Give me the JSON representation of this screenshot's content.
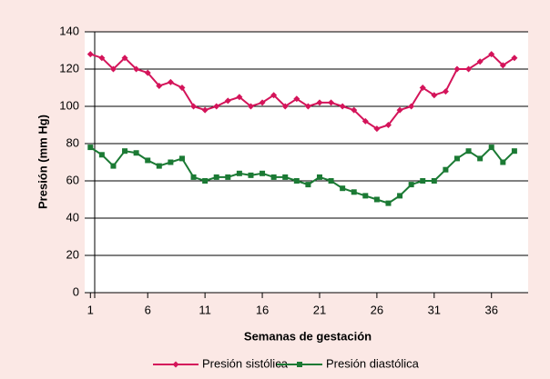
{
  "chart_data": {
    "type": "line",
    "xlabel": "Semanas de gestación",
    "ylabel": "Presión (mm Hg)",
    "x": [
      1,
      2,
      3,
      4,
      5,
      6,
      7,
      8,
      9,
      10,
      11,
      12,
      13,
      14,
      15,
      16,
      17,
      18,
      19,
      20,
      21,
      22,
      23,
      24,
      25,
      26,
      27,
      28,
      29,
      30,
      31,
      32,
      33,
      34,
      35,
      36,
      37,
      38
    ],
    "series": [
      {
        "name": "Presión sistólica",
        "color": "#d4145a",
        "marker": "diamond",
        "values": [
          128,
          126,
          120,
          126,
          120,
          118,
          111,
          113,
          110,
          100,
          98,
          100,
          103,
          105,
          100,
          102,
          106,
          100,
          104,
          100,
          102,
          102,
          100,
          98,
          92,
          88,
          90,
          98,
          100,
          110,
          106,
          108,
          120,
          120,
          124,
          128,
          122,
          126
        ]
      },
      {
        "name": "Presión diastólica",
        "color": "#1b7a34",
        "marker": "square",
        "values": [
          78,
          74,
          68,
          76,
          75,
          71,
          68,
          70,
          72,
          62,
          60,
          62,
          62,
          64,
          63,
          64,
          62,
          62,
          60,
          58,
          62,
          60,
          56,
          54,
          52,
          50,
          48,
          52,
          58,
          60,
          60,
          66,
          72,
          76,
          72,
          78,
          70,
          76
        ]
      }
    ],
    "xlim": [
      0.5,
      39.2
    ],
    "xticks": [
      1,
      6,
      11,
      16,
      21,
      26,
      31,
      36
    ],
    "ylim": [
      0,
      140
    ],
    "yticks": [
      0,
      20,
      40,
      60,
      80,
      100,
      120,
      140
    ],
    "grid": true,
    "legend": "bottom"
  }
}
